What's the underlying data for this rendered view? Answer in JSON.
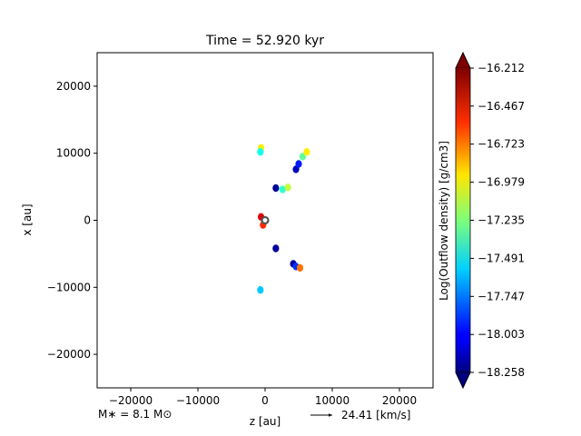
{
  "chart_data": {
    "type": "heatmap",
    "title": "Time = 52.920 kyr",
    "xlabel": "z [au]",
    "ylabel": "x [au]",
    "xlim": [
      -25000,
      25000
    ],
    "ylim": [
      -25000,
      25000
    ],
    "x_ticks": [
      -20000,
      -10000,
      0,
      10000,
      20000
    ],
    "x_tick_labels": [
      "−20000",
      "−10000",
      "0",
      "10000",
      "20000"
    ],
    "y_ticks": [
      -20000,
      -10000,
      0,
      10000,
      20000
    ],
    "y_tick_labels": [
      "−20000",
      "−10000",
      "0",
      "10000",
      "20000"
    ],
    "grid": false,
    "colorbar": {
      "label": "Log(Outflow density) [g/cm3]",
      "colormap": "jet",
      "min": -18.258,
      "max": -16.212,
      "extend": "both",
      "ticks": [
        -16.212,
        -16.467,
        -16.723,
        -16.979,
        -17.235,
        -17.491,
        -17.747,
        -18.003,
        -18.258
      ],
      "tick_labels": [
        "−16.212",
        "−16.467",
        "−16.723",
        "−16.979",
        "−17.235",
        "−17.491",
        "−17.747",
        "−18.003",
        "−18.258"
      ]
    },
    "blobs": [
      {
        "z": -600,
        "x": 10800,
        "value": -16.95
      },
      {
        "z": -700,
        "x": 10200,
        "value": -17.45
      },
      {
        "z": 4600,
        "x": 7600,
        "value": -18.15
      },
      {
        "z": 5000,
        "x": 8400,
        "value": -17.95
      },
      {
        "z": 5600,
        "x": 9500,
        "value": -17.3
      },
      {
        "z": 6200,
        "x": 10200,
        "value": -16.95
      },
      {
        "z": 1600,
        "x": 4800,
        "value": -18.2
      },
      {
        "z": 2600,
        "x": 4600,
        "value": -17.4
      },
      {
        "z": 3400,
        "x": 4900,
        "value": -17.1
      },
      {
        "z": -600,
        "x": 500,
        "value": -16.4
      },
      {
        "z": -300,
        "x": -700,
        "value": -16.55
      },
      {
        "z": 1600,
        "x": -4200,
        "value": -18.2
      },
      {
        "z": 4200,
        "x": -6500,
        "value": -18.2
      },
      {
        "z": 4600,
        "x": -6900,
        "value": -17.9
      },
      {
        "z": 5200,
        "x": -7100,
        "value": -16.7
      },
      {
        "z": -700,
        "x": -10400,
        "value": -17.6
      }
    ],
    "source_marker": {
      "z": 0,
      "x": 0
    }
  },
  "annotations": {
    "mass_label": "M∗ = 8.1 M⊙",
    "arrow_label": "24.41 [km/s]"
  }
}
